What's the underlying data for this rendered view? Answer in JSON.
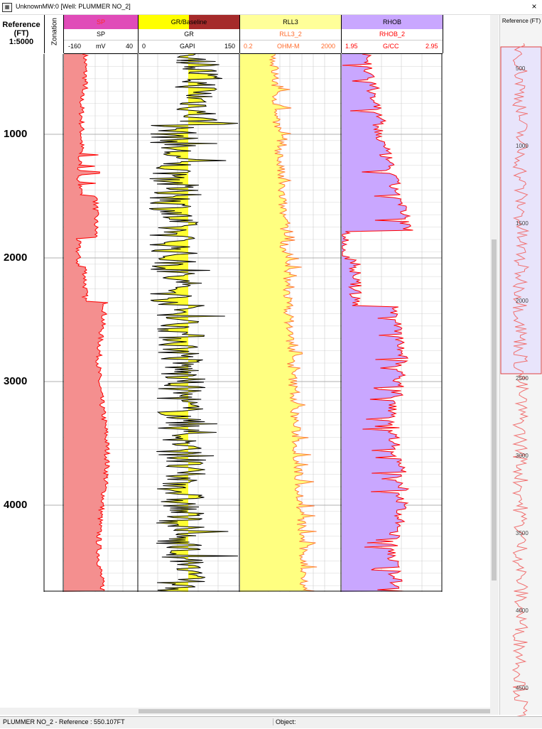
{
  "window": {
    "title": "UnknownMW:0 [Well: PLUMMER NO_2]",
    "app_icon": "log-icon",
    "close_glyph": "×"
  },
  "reference": {
    "title": "Reference",
    "unit": "(FT)",
    "scale": "1:5000",
    "depths": [
      "1000",
      "2000",
      "3000",
      "4000"
    ]
  },
  "zonation": {
    "label": "Zonation"
  },
  "tracks": [
    {
      "band_label": "SP",
      "band_color": "#e04bb8",
      "band_text_color": "#ff2a2a",
      "curve": "SP",
      "min": "-160",
      "unit": "mV",
      "max": "40",
      "text_color": "#000"
    },
    {
      "band_label": "GR/Baseline",
      "band_color": "#ffff00",
      "band_color2": "#a52a2a",
      "band_text_color": "#000",
      "curve": "GR",
      "min": "0",
      "unit": "GAPI",
      "max": "150",
      "text_color": "#000"
    },
    {
      "band_label": "RLL3",
      "band_color": "#ffff99",
      "band_text_color": "#000",
      "curve": "RLL3_2",
      "min": "0.2",
      "unit": "OHM-M",
      "max": "2000",
      "text_color": "#ff6a2a"
    },
    {
      "band_label": "RHOB",
      "band_color": "#c9a7ff",
      "band_text_color": "#000",
      "curve": "RHOB_2",
      "min": "1.95",
      "unit": "G/CC",
      "max": "2.95",
      "text_color": "#ff0000"
    }
  ],
  "navigator": {
    "title": "Reference (FT)",
    "ticks": [
      "500",
      "1000",
      "1500",
      "2000",
      "2500",
      "3000",
      "3500",
      "4000",
      "4500"
    ]
  },
  "status": {
    "left": "PLUMMER NO_2 - Reference : 550.107FT",
    "object": "Object:"
  },
  "colors": {
    "sp_fill": "#f48f8f",
    "sp_curve": "#ff0000",
    "gr_curve": "#000000",
    "rll_fill": "#ffff80",
    "rll_curve": "#ff7a3a",
    "rhob_fill": "#c9a7ff",
    "rhob_curve": "#ff0000"
  }
}
